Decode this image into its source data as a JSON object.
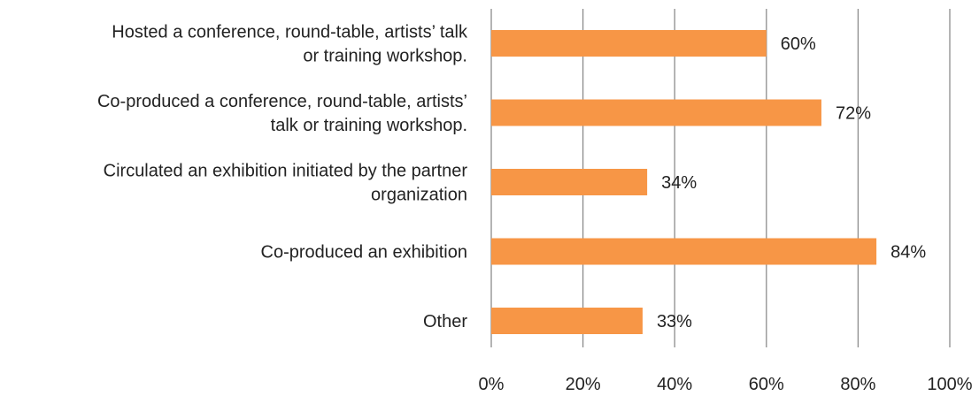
{
  "chart_data": {
    "type": "bar",
    "orientation": "horizontal",
    "categories": [
      [
        "Hosted a conference, round-table, artists’ talk",
        "or training workshop."
      ],
      [
        "Co-produced a  conference, round-table, artists’",
        "talk or training workshop."
      ],
      [
        "Circulated an exhibition initiated by the partner",
        "organization"
      ],
      [
        "Co-produced an exhibition"
      ],
      [
        "Other"
      ]
    ],
    "values": [
      60,
      72,
      34,
      84,
      33
    ],
    "data_labels": [
      "60%",
      "72%",
      "34%",
      "84%",
      "33%"
    ],
    "xlim": [
      0,
      100
    ],
    "x_ticks": [
      0,
      20,
      40,
      60,
      80,
      100
    ],
    "x_tick_labels": [
      "0%",
      "20%",
      "40%",
      "60%",
      "80%",
      "100%"
    ],
    "gridlines": true,
    "bar_color": "#F79646",
    "grid_color": "#8C8C8C"
  }
}
